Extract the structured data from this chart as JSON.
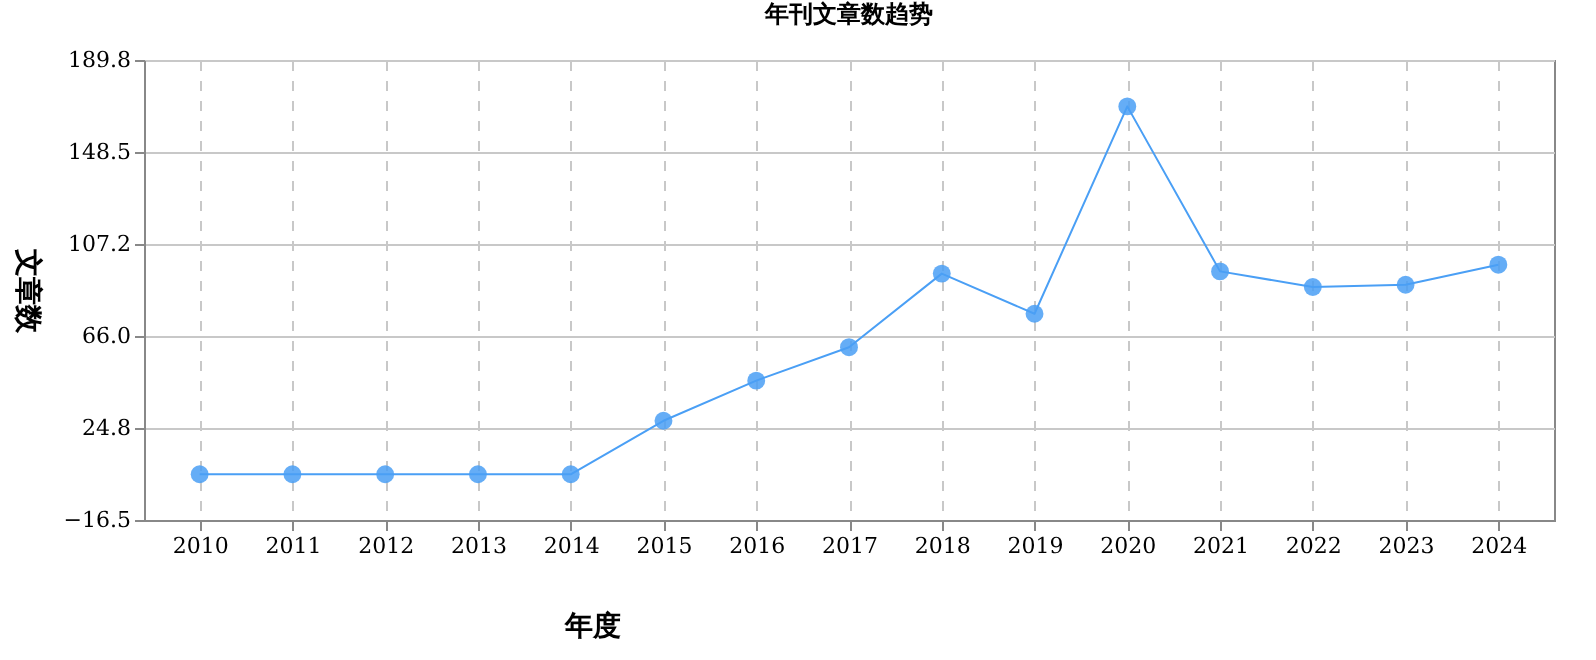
{
  "chart_data": {
    "type": "line",
    "title": "年刊文章数趋势",
    "xlabel": "年度",
    "ylabel": "文章数",
    "categories": [
      "2010",
      "2011",
      "2012",
      "2013",
      "2014",
      "2015",
      "2016",
      "2017",
      "2018",
      "2019",
      "2020",
      "2021",
      "2022",
      "2023",
      "2024"
    ],
    "series": [
      {
        "color": "#4a9ff5",
        "values": [
          4,
          4,
          4,
          4,
          4,
          28,
          46,
          61,
          94,
          76,
          169,
          95,
          88,
          89,
          98
        ]
      }
    ],
    "ylim": [
      -16.5,
      189.8
    ],
    "yticks": [
      -16.5,
      24.8,
      {
        "value": 66,
        "label": "66.0"
      },
      107.2,
      148.5,
      189.8
    ],
    "grid": true,
    "marker": "circle",
    "line_style": "solid"
  }
}
